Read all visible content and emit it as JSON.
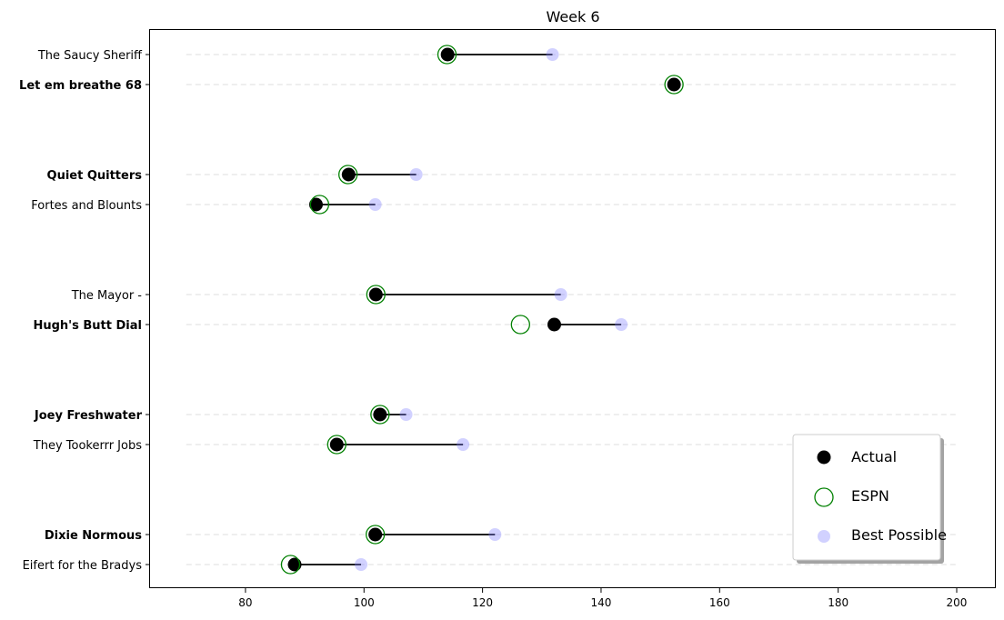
{
  "chart_data": {
    "type": "scatter",
    "title": "Week 6",
    "xlabel": "",
    "ylabel": "",
    "xlim": [
      63.9,
      206.6
    ],
    "xticks": [
      80,
      100,
      120,
      140,
      160,
      180,
      200
    ],
    "grid": "horizontal dashed lines at each team",
    "legend_position": "lower-right",
    "legend": [
      "Actual",
      "ESPN",
      "Best Possible"
    ],
    "colors": {
      "actual": "#000000",
      "espn": "#008000",
      "best": "#7b7bff",
      "line": "#000000",
      "grid": "#dddddd"
    },
    "teams": [
      {
        "name": "The Saucy Sheriff",
        "bold": false,
        "actual": 114.1,
        "espn": 114.0,
        "best": 131.8
      },
      {
        "name": "Let em breathe 68",
        "bold": true,
        "actual": 152.3,
        "espn": 152.3,
        "best": 152.3
      },
      {
        "name": "Quiet Quitters",
        "bold": true,
        "actual": 97.4,
        "espn": 97.3,
        "best": 108.8
      },
      {
        "name": "Fortes and Blounts",
        "bold": false,
        "actual": 91.9,
        "espn": 92.5,
        "best": 101.9
      },
      {
        "name": "The Mayor -",
        "bold": false,
        "actual": 102.0,
        "espn": 102.0,
        "best": 133.2
      },
      {
        "name": "Hugh's  Butt Dial",
        "bold": true,
        "actual": 132.1,
        "espn": 126.4,
        "best": 143.4
      },
      {
        "name": "Joey Freshwater",
        "bold": true,
        "actual": 102.7,
        "espn": 102.7,
        "best": 107.1
      },
      {
        "name": "They Tookerrr Jobs",
        "bold": false,
        "actual": 95.4,
        "espn": 95.4,
        "best": 116.7
      },
      {
        "name": "Dixie Normous",
        "bold": true,
        "actual": 101.9,
        "espn": 101.9,
        "best": 122.1
      },
      {
        "name": "Eifert  for the Bradys",
        "bold": false,
        "actual": 88.3,
        "espn": 87.6,
        "best": 99.5
      }
    ]
  }
}
